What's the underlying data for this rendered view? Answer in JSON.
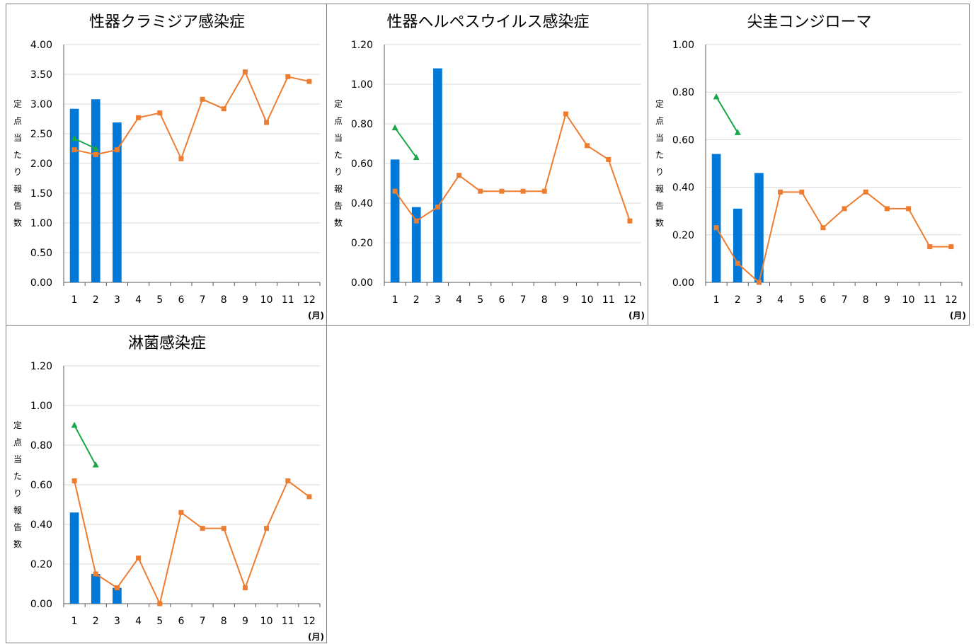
{
  "page": {
    "background": "#ffffff",
    "border_color": "#7f7f7f"
  },
  "colors": {
    "bar": "#0078d7",
    "line_orange": "#ed7d31",
    "line_green": "#1aa64a",
    "grid": "#d9d9d9",
    "axis": "#595959",
    "text": "#000000"
  },
  "labels": {
    "ylabel": "定点当たり報告数",
    "xunit": "(月)"
  },
  "chart_data": [
    {
      "type": "bar",
      "title": "性器クラミジア感染症",
      "xlabel": "(月)",
      "ylabel": "定点当たり報告数",
      "categories": [
        "1",
        "2",
        "3",
        "4",
        "5",
        "6",
        "7",
        "8",
        "9",
        "10",
        "11",
        "12"
      ],
      "ylim": [
        0,
        4
      ],
      "yticks": [
        "0.00",
        "0.50",
        "1.00",
        "1.50",
        "2.00",
        "2.50",
        "3.00",
        "3.50",
        "4.00"
      ],
      "series": [
        {
          "kind": "bar",
          "values": [
            2.92,
            3.08,
            2.69,
            null,
            null,
            null,
            null,
            null,
            null,
            null,
            null,
            null
          ],
          "color": "#0078d7"
        },
        {
          "kind": "line",
          "marker": "square",
          "values": [
            2.23,
            2.15,
            2.23,
            2.77,
            2.85,
            2.08,
            3.08,
            2.92,
            3.54,
            2.69,
            3.46,
            3.38
          ],
          "color": "#ed7d31"
        },
        {
          "kind": "line",
          "marker": "triangle",
          "values": [
            2.42,
            2.25,
            null,
            null,
            null,
            null,
            null,
            null,
            null,
            null,
            null,
            null
          ],
          "color": "#1aa64a"
        }
      ],
      "grid": true
    },
    {
      "type": "bar",
      "title": "性器ヘルペスウイルス感染症",
      "xlabel": "(月)",
      "ylabel": "定点当たり報告数",
      "categories": [
        "1",
        "2",
        "3",
        "4",
        "5",
        "6",
        "7",
        "8",
        "9",
        "10",
        "11",
        "12"
      ],
      "ylim": [
        0,
        1.2
      ],
      "yticks": [
        "0.00",
        "0.20",
        "0.40",
        "0.60",
        "0.80",
        "1.00",
        "1.20"
      ],
      "series": [
        {
          "kind": "bar",
          "values": [
            0.62,
            0.38,
            1.08,
            null,
            null,
            null,
            null,
            null,
            null,
            null,
            null,
            null
          ],
          "color": "#0078d7"
        },
        {
          "kind": "line",
          "marker": "square",
          "values": [
            0.46,
            0.31,
            0.38,
            0.54,
            0.46,
            0.46,
            0.46,
            0.46,
            0.85,
            0.69,
            0.62,
            0.31
          ],
          "color": "#ed7d31"
        },
        {
          "kind": "line",
          "marker": "triangle",
          "values": [
            0.78,
            0.63,
            null,
            null,
            null,
            null,
            null,
            null,
            null,
            null,
            null,
            null
          ],
          "color": "#1aa64a"
        }
      ],
      "grid": true
    },
    {
      "type": "bar",
      "title": "尖圭コンジローマ",
      "xlabel": "(月)",
      "ylabel": "定点当たり報告数",
      "categories": [
        "1",
        "2",
        "3",
        "4",
        "5",
        "6",
        "7",
        "8",
        "9",
        "10",
        "11",
        "12"
      ],
      "ylim": [
        0,
        1
      ],
      "yticks": [
        "0.00",
        "0.20",
        "0.40",
        "0.60",
        "0.80",
        "1.00"
      ],
      "series": [
        {
          "kind": "bar",
          "values": [
            0.54,
            0.31,
            0.46,
            null,
            null,
            null,
            null,
            null,
            null,
            null,
            null,
            null
          ],
          "color": "#0078d7"
        },
        {
          "kind": "line",
          "marker": "square",
          "values": [
            0.23,
            0.08,
            0.0,
            0.38,
            0.38,
            0.23,
            0.31,
            0.38,
            0.31,
            0.31,
            0.15,
            0.15
          ],
          "color": "#ed7d31"
        },
        {
          "kind": "line",
          "marker": "triangle",
          "values": [
            0.78,
            0.63,
            null,
            null,
            null,
            null,
            null,
            null,
            null,
            null,
            null,
            null
          ],
          "color": "#1aa64a"
        }
      ],
      "grid": true
    },
    {
      "type": "bar",
      "title": "淋菌感染症",
      "xlabel": "(月)",
      "ylabel": "定点当たり報告数",
      "categories": [
        "1",
        "2",
        "3",
        "4",
        "5",
        "6",
        "7",
        "8",
        "9",
        "10",
        "11",
        "12"
      ],
      "ylim": [
        0,
        1.2
      ],
      "yticks": [
        "0.00",
        "0.20",
        "0.40",
        "0.60",
        "0.80",
        "1.00",
        "1.20"
      ],
      "series": [
        {
          "kind": "bar",
          "values": [
            0.46,
            0.15,
            0.08,
            null,
            null,
            null,
            null,
            null,
            null,
            null,
            null,
            null
          ],
          "color": "#0078d7"
        },
        {
          "kind": "line",
          "marker": "square",
          "values": [
            0.62,
            0.15,
            0.08,
            0.23,
            0.0,
            0.46,
            0.38,
            0.38,
            0.08,
            0.38,
            0.62,
            0.54
          ],
          "color": "#ed7d31"
        },
        {
          "kind": "line",
          "marker": "triangle",
          "values": [
            0.9,
            0.7,
            null,
            null,
            null,
            null,
            null,
            null,
            null,
            null,
            null,
            null
          ],
          "color": "#1aa64a"
        }
      ],
      "grid": true
    }
  ]
}
